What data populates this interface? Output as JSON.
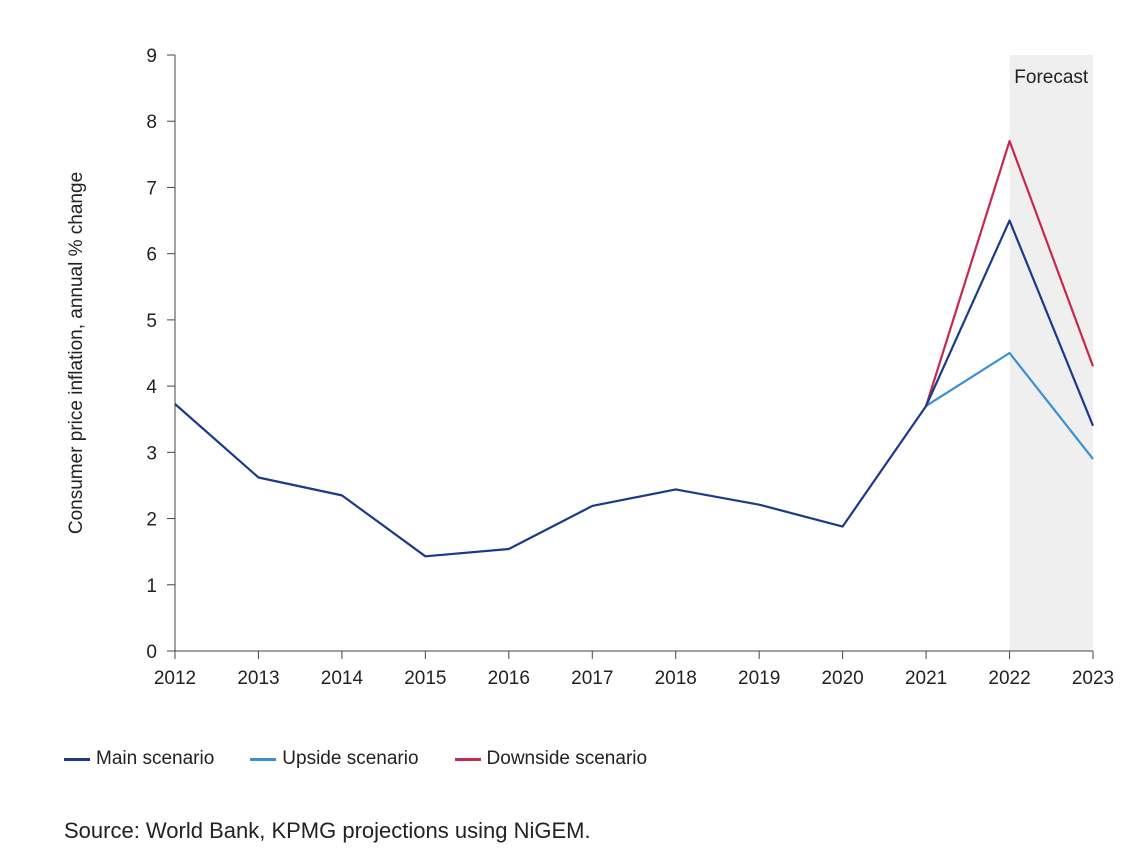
{
  "chart_data": {
    "type": "line",
    "title": "",
    "ylabel": "Consumer price inflation, annual % change",
    "xlabel": "",
    "ylim": [
      0,
      9
    ],
    "yticks": [
      0,
      1,
      2,
      3,
      4,
      5,
      6,
      7,
      8,
      9
    ],
    "x": [
      2012,
      2013,
      2014,
      2015,
      2016,
      2017,
      2018,
      2019,
      2020,
      2021,
      2022,
      2023
    ],
    "forecast": {
      "label": "Forecast",
      "from": 2022,
      "to": 2023,
      "color": "#efefef"
    },
    "grid": false,
    "legend_position": "bottom-left",
    "series": [
      {
        "name": "Main scenario",
        "color": "#1a3a8c",
        "x": [
          2012,
          2013,
          2014,
          2015,
          2016,
          2017,
          2018,
          2019,
          2020,
          2021,
          2022,
          2023
        ],
        "values": [
          3.73,
          2.62,
          2.35,
          1.43,
          1.54,
          2.19,
          2.44,
          2.21,
          1.88,
          3.7,
          6.5,
          3.4
        ]
      },
      {
        "name": "Upside scenario",
        "color": "#3b8fd4",
        "x": [
          2021,
          2022,
          2023
        ],
        "values": [
          3.7,
          4.5,
          2.9
        ]
      },
      {
        "name": "Downside scenario",
        "color": "#c8274f",
        "x": [
          2021,
          2022,
          2023
        ],
        "values": [
          3.7,
          7.7,
          4.3
        ]
      }
    ]
  },
  "source": "Source: World Bank, KPMG projections using NiGEM."
}
